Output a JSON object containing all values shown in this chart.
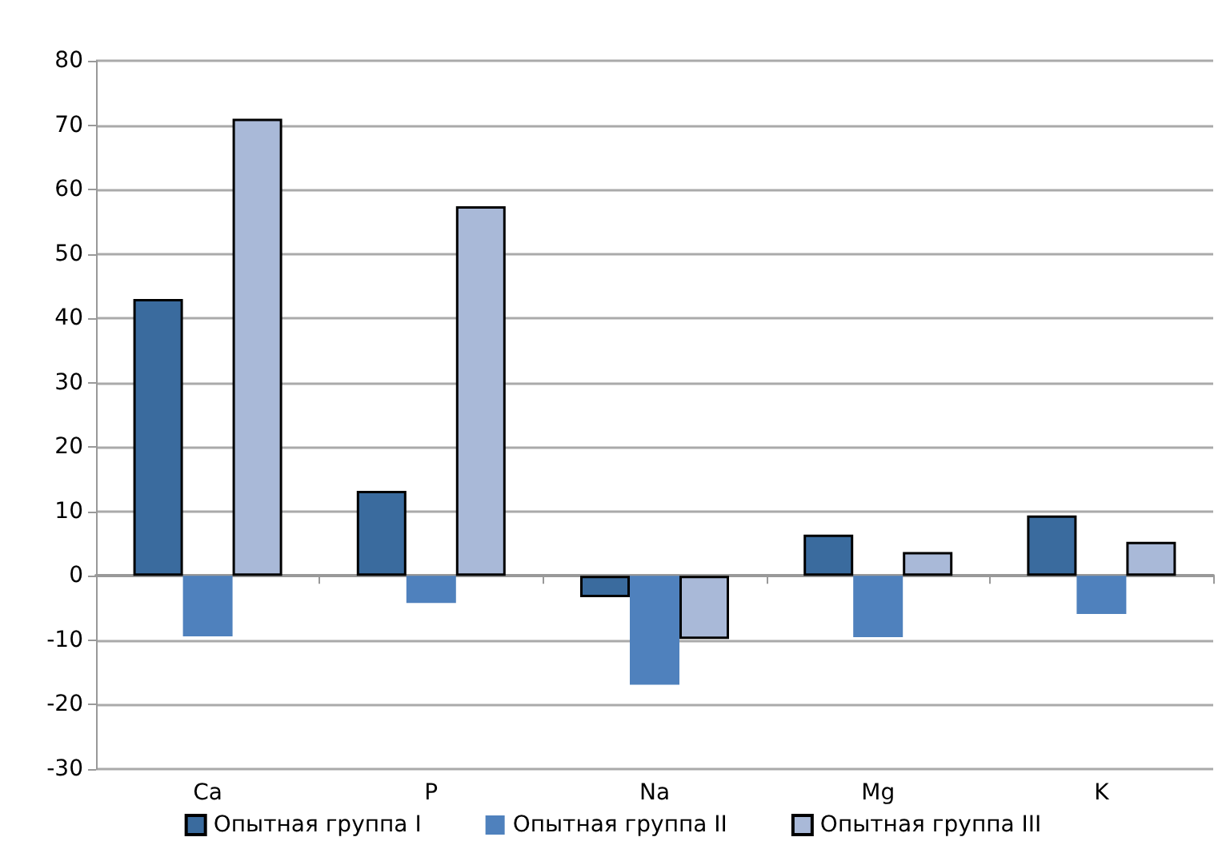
{
  "chart_data": {
    "type": "bar",
    "categories": [
      "Ca",
      "P",
      "Na",
      "Mg",
      "K"
    ],
    "series": [
      {
        "name": "Опытная группа I",
        "color": "#3a6b9e",
        "values": [
          43.0,
          13.2,
          -3.3,
          6.4,
          9.4
        ]
      },
      {
        "name": "Опытная группа II",
        "color": "#4f81bd",
        "values": [
          -9.4,
          -4.2,
          -16.9,
          -9.5,
          -5.9
        ]
      },
      {
        "name": "Опытная группа III",
        "color": "#a9b9d8",
        "values": [
          71.0,
          57.4,
          -9.8,
          3.7,
          5.3
        ]
      }
    ],
    "ylim": [
      -30,
      80
    ],
    "yticks": [
      -30,
      -20,
      -10,
      0,
      10,
      20,
      30,
      40,
      50,
      60,
      70,
      80
    ],
    "grid": "y",
    "legend": "bottom"
  }
}
